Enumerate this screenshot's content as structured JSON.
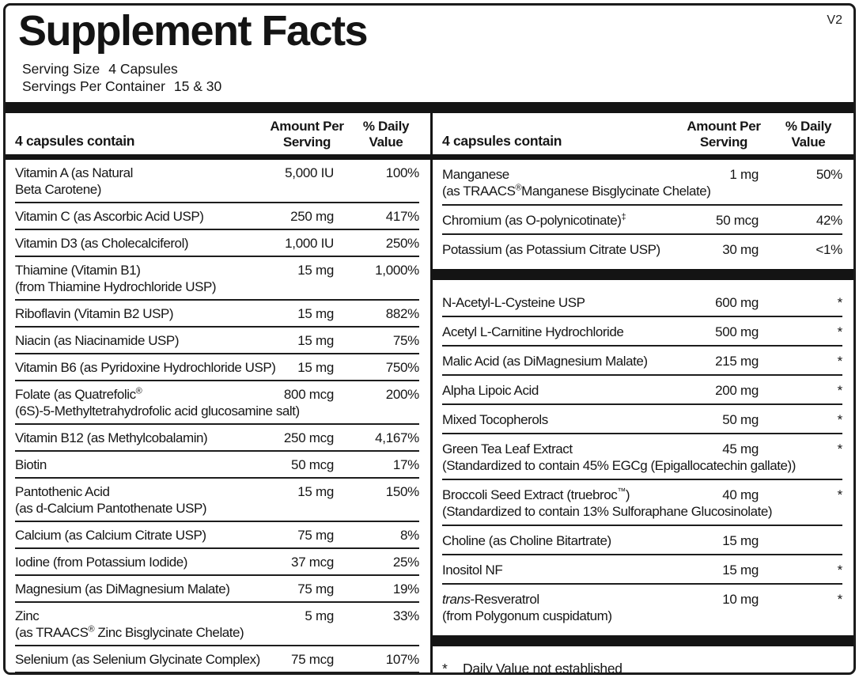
{
  "meta": {
    "version_tag": "V2"
  },
  "header": {
    "title": "Supplement Facts",
    "serving_size_label": "Serving Size",
    "serving_size_value": "4 Capsules",
    "servings_per_container_label": "Servings Per Container",
    "servings_per_container_value": "15 & 30"
  },
  "columns": {
    "left": {
      "header": {
        "contain": "4 capsules contain",
        "amount": "Amount Per\nServing",
        "dv": "% Daily\nValue"
      },
      "rows": [
        {
          "name": "Vitamin A (as Natural",
          "line2": "Beta Carotene)",
          "amount": "5,000 IU",
          "dv": "100%"
        },
        {
          "name": "Vitamin C (as Ascorbic Acid USP)",
          "amount": "250 mg",
          "dv": "417%"
        },
        {
          "name": "Vitamin D3 (as Cholecalciferol)",
          "amount": "1,000 IU",
          "dv": "250%"
        },
        {
          "name": "Thiamine (Vitamin B1)",
          "line2": "(from Thiamine Hydrochloride USP)",
          "amount": "15 mg",
          "dv": "1,000%"
        },
        {
          "name": "Riboflavin (Vitamin B2 USP)",
          "amount": "15 mg",
          "dv": "882%"
        },
        {
          "name": "Niacin (as Niacinamide USP)",
          "amount": "15 mg",
          "dv": "75%"
        },
        {
          "name": "Vitamin B6 (as Pyridoxine Hydrochloride USP)",
          "amount": "15 mg",
          "dv": "750%"
        },
        {
          "name": "Folate (as Quatrefolic®",
          "line2": "(6S)-5-Methyltetrahydrofolic acid glucosamine salt)",
          "amount": "800 mcg",
          "dv": "200%"
        },
        {
          "name": "Vitamin B12 (as Methylcobalamin)",
          "amount": "250 mcg",
          "dv": "4,167%"
        },
        {
          "name": "Biotin",
          "amount": "50 mcg",
          "dv": "17%"
        },
        {
          "name": "Pantothenic Acid",
          "line2": "(as d-Calcium Pantothenate USP)",
          "amount": "15 mg",
          "dv": "150%"
        },
        {
          "name": "Calcium (as Calcium Citrate USP)",
          "amount": "75 mg",
          "dv": "8%"
        },
        {
          "name": "Iodine (from Potassium Iodide)",
          "amount": "37 mcg",
          "dv": "25%"
        },
        {
          "name": "Magnesium (as DiMagnesium Malate)",
          "amount": "75 mg",
          "dv": "19%"
        },
        {
          "name": "Zinc",
          "line2": "(as TRAACS® Zinc Bisglycinate Chelate)",
          "amount": "5 mg",
          "dv": "33%"
        },
        {
          "name": "Selenium (as Selenium Glycinate Complex)",
          "amount": "75 mcg",
          "dv": "107%"
        }
      ]
    },
    "right": {
      "header": {
        "contain": "4 capsules contain",
        "amount": "Amount Per\nServing",
        "dv": "% Daily\nValue"
      },
      "rows": [
        {
          "name": "Manganese",
          "line2": "(as TRAACS®Manganese Bisglycinate Chelate)",
          "amount": "1 mg",
          "dv": "50%"
        },
        {
          "name": "Chromium (as O-polynicotinate)‡",
          "amount": "50 mcg",
          "dv": "42%"
        },
        {
          "name": "Potassium (as Potassium Citrate USP)",
          "amount": "30 mg",
          "dv": "<1%",
          "no_rule": true
        },
        {
          "bar_before": true,
          "name": "N-Acetyl-L-Cysteine USP",
          "amount": "600 mg",
          "dv": "*"
        },
        {
          "name": "Acetyl L-Carnitine Hydrochloride",
          "amount": "500 mg",
          "dv": "*"
        },
        {
          "name": "Malic Acid (as DiMagnesium Malate)",
          "amount": "215 mg",
          "dv": "*"
        },
        {
          "name": "Alpha Lipoic Acid",
          "amount": "200 mg",
          "dv": "*"
        },
        {
          "name": "Mixed Tocopherols",
          "amount": "50 mg",
          "dv": "*"
        },
        {
          "name": "Green Tea Leaf Extract",
          "line2": "(Standardized to contain 45% EGCg (Epigallocatechin gallate))",
          "amount": "45 mg",
          "dv": "*"
        },
        {
          "name": "Broccoli Seed Extract (truebroc™)",
          "line2": "(Standardized to contain 13% Sulforaphane Glucosinolate)",
          "amount": "40 mg",
          "dv": "*"
        },
        {
          "name": "Choline (as Choline Bitartrate)",
          "amount": "15 mg",
          "dv": ""
        },
        {
          "name": "Inositol NF",
          "amount": "15 mg",
          "dv": "*"
        },
        {
          "italic_prefix": "trans",
          "name": "-Resveratrol",
          "line2": "(from Polygonum cuspidatum)",
          "amount": "10 mg",
          "dv": "*",
          "no_rule": true
        }
      ],
      "footnote_symbol": "*",
      "footnote": "Daily Value not established"
    }
  }
}
